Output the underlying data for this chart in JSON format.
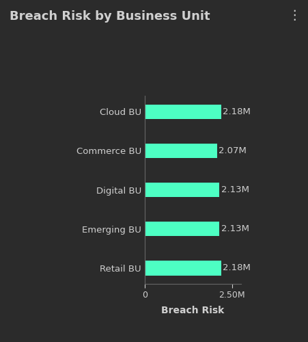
{
  "title": "Breach Risk by Business Unit",
  "categories": [
    "Cloud BU",
    "Commerce BU",
    "Digital BU",
    "Emerging BU",
    "Retail BU"
  ],
  "values": [
    2.18,
    2.07,
    2.13,
    2.13,
    2.18
  ],
  "labels": [
    "2.18M",
    "2.07M",
    "2.13M",
    "2.13M",
    "2.18M"
  ],
  "bar_color": "#4dffc3",
  "background_color": "#2b2b2b",
  "axes_background": "#2b2b2b",
  "text_color": "#d0d0d0",
  "axis_color": "#666666",
  "xlabel": "Breach Risk",
  "xlim": [
    0,
    2.75
  ],
  "xticks": [
    0,
    2.5
  ],
  "xtick_labels": [
    "0",
    "2.50M"
  ],
  "title_fontsize": 13,
  "label_fontsize": 9.5,
  "tick_fontsize": 9,
  "xlabel_fontsize": 10,
  "bar_height": 0.38,
  "figsize": [
    4.52,
    5.0
  ],
  "dpi": 100
}
